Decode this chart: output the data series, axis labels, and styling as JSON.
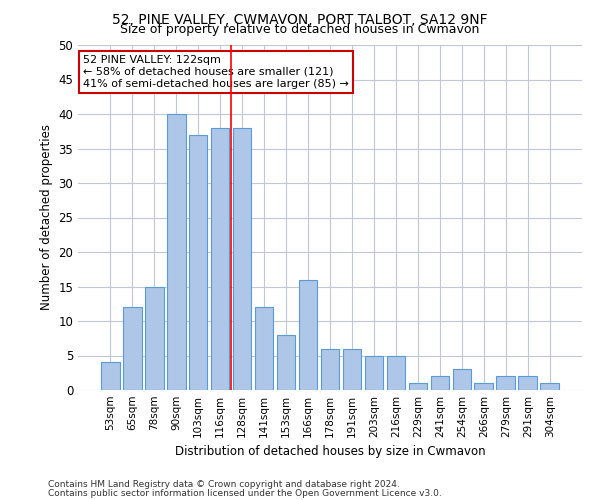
{
  "title1": "52, PINE VALLEY, CWMAVON, PORT TALBOT, SA12 9NF",
  "title2": "Size of property relative to detached houses in Cwmavon",
  "xlabel": "Distribution of detached houses by size in Cwmavon",
  "ylabel": "Number of detached properties",
  "categories": [
    "53sqm",
    "65sqm",
    "78sqm",
    "90sqm",
    "103sqm",
    "116sqm",
    "128sqm",
    "141sqm",
    "153sqm",
    "166sqm",
    "178sqm",
    "191sqm",
    "203sqm",
    "216sqm",
    "229sqm",
    "241sqm",
    "254sqm",
    "266sqm",
    "279sqm",
    "291sqm",
    "304sqm"
  ],
  "values": [
    4,
    12,
    15,
    40,
    37,
    38,
    38,
    12,
    8,
    16,
    6,
    6,
    5,
    5,
    1,
    2,
    3,
    1,
    2,
    2,
    1
  ],
  "bar_color": "#aec6e8",
  "bar_edge_color": "#5b9bd5",
  "ref_line_x": 5.5,
  "ref_line_label": "52 PINE VALLEY: 122sqm",
  "annotation_line1": "← 58% of detached houses are smaller (121)",
  "annotation_line2": "41% of semi-detached houses are larger (85) →",
  "annotation_box_color": "#ffffff",
  "annotation_box_edge": "#cc0000",
  "ylim": [
    0,
    50
  ],
  "yticks": [
    0,
    5,
    10,
    15,
    20,
    25,
    30,
    35,
    40,
    45,
    50
  ],
  "footer1": "Contains HM Land Registry data © Crown copyright and database right 2024.",
  "footer2": "Contains public sector information licensed under the Open Government Licence v3.0.",
  "bg_color": "#ffffff",
  "grid_color": "#c0c8d8",
  "fig_width": 6.0,
  "fig_height": 5.0
}
